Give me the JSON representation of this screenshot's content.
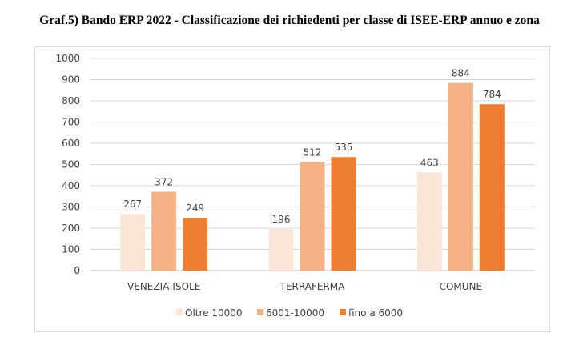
{
  "chart_data": {
    "type": "bar",
    "title": "Graf.5) Bando ERP 2022 - Classificazione dei richiedenti per classe di ISEE-ERP annuo e zona",
    "categories": [
      "VENEZIA-ISOLE",
      "TERRAFERMA",
      "COMUNE"
    ],
    "series": [
      {
        "name": "Oltre 10000",
        "values": [
          267,
          196,
          463
        ],
        "color": "#FBE5D6"
      },
      {
        "name": "6001-10000",
        "values": [
          372,
          512,
          884
        ],
        "color": "#F4B183"
      },
      {
        "name": "fino a 6000",
        "values": [
          249,
          535,
          784
        ],
        "color": "#ED7D31"
      }
    ],
    "ylim": [
      0,
      1000
    ],
    "yticks": [
      "0",
      "100",
      "200",
      "300",
      "400",
      "500",
      "600",
      "700",
      "800",
      "900",
      "1000"
    ],
    "grid": true,
    "legend": "bottom",
    "xlabel": "",
    "ylabel": ""
  }
}
